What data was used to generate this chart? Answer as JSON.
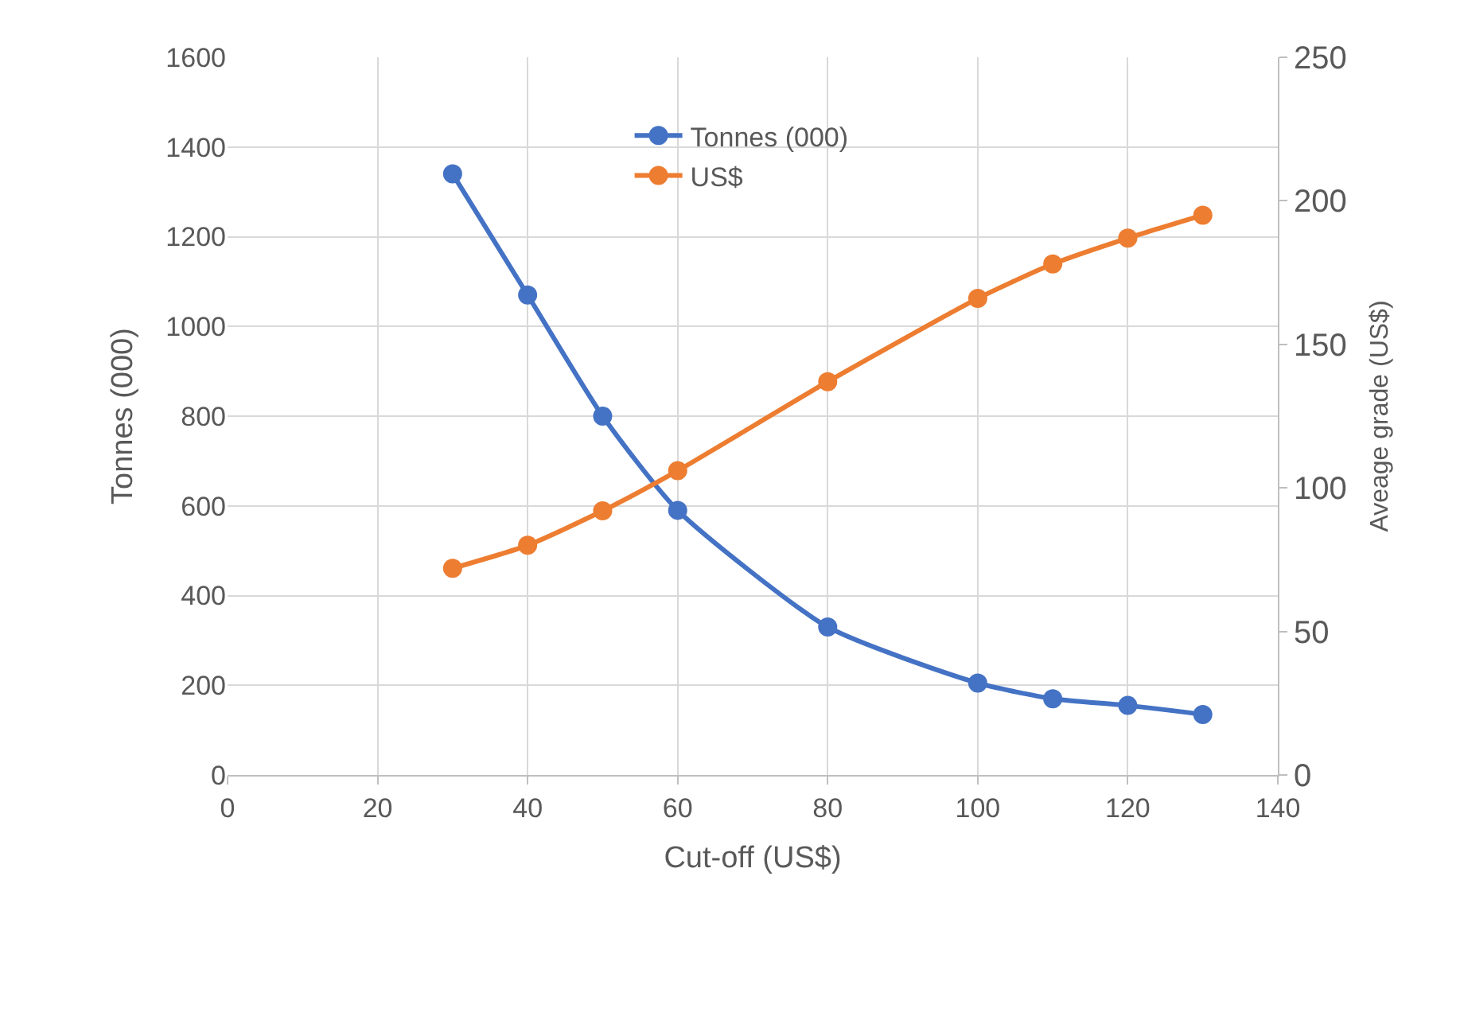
{
  "chart_data": {
    "type": "line",
    "xlabel": "Cut-off (US$)",
    "ylabel": "Tonnes (000)",
    "y2label": "Aveage grade (US$)",
    "x": [
      30,
      40,
      50,
      60,
      80,
      100,
      110,
      120,
      130
    ],
    "series": [
      {
        "name": "Tonnes (000)",
        "color": "#4472c4",
        "values": [
          1340,
          1070,
          800,
          590,
          330,
          205,
          170,
          155,
          135
        ]
      },
      {
        "name": "US$",
        "color": "#ed7d31",
        "axis": "y2",
        "values": [
          72,
          80,
          92,
          106,
          137,
          166,
          178,
          187,
          195
        ]
      }
    ],
    "xlim": [
      0,
      140
    ],
    "xticks": [
      0,
      20,
      40,
      60,
      80,
      100,
      120,
      140
    ],
    "ylim": [
      0,
      1600
    ],
    "yticks": [
      0,
      200,
      400,
      600,
      800,
      1000,
      1200,
      1400,
      1600
    ],
    "y2lim": [
      0,
      250
    ],
    "y2ticks": [
      0,
      50,
      100,
      150,
      200,
      250
    ],
    "grid": true,
    "legend": "top",
    "marker": "circle",
    "line_style": "solid"
  }
}
